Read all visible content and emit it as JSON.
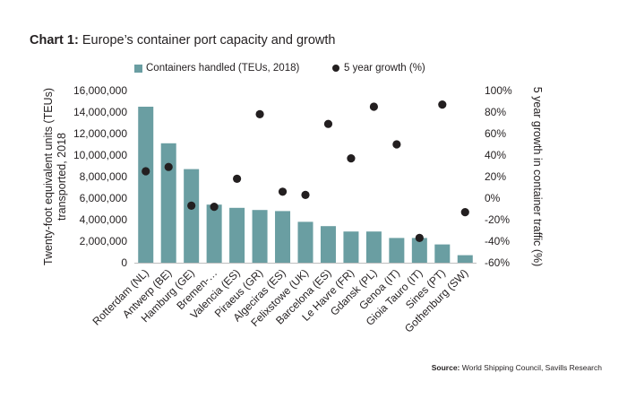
{
  "chart_data": {
    "type": "bar",
    "title_bold": "Chart 1:",
    "title_rest": "Europe’s container port capacity and growth",
    "categories": [
      "Rotterdam (NL)",
      "Antwerp (BE)",
      "Hamburg (GE)",
      "Bremen-…",
      "Valencia (ES)",
      "Piraeus (GR)",
      "Algeciras (ES)",
      "Felixstowe (UK)",
      "Barcelona (ES)",
      "Le Havre (FR)",
      "Gdansk (PL)",
      "Genoa (IT)",
      "Gioia Tauro (IT)",
      "Sines (PT)",
      "Gothenburg (SW)"
    ],
    "series": [
      {
        "name": "Containers handled (TEUs, 2018)",
        "type": "bar",
        "axis": "left",
        "color": "#6a9ea2",
        "values": [
          14500000,
          11100000,
          8700000,
          5400000,
          5100000,
          4900000,
          4800000,
          3800000,
          3400000,
          2900000,
          2900000,
          2300000,
          2300000,
          1700000,
          700000
        ]
      },
      {
        "name": "5 year growth (%)",
        "type": "scatter",
        "axis": "right",
        "color": "#231f20",
        "values": [
          25,
          29,
          -7,
          -8,
          18,
          78,
          6,
          3,
          69,
          37,
          85,
          50,
          -37,
          87,
          -13
        ]
      }
    ],
    "y_left": {
      "label_line1": "Twenty-foot equivalent units (TEUs)",
      "label_line2": "transported, 2018",
      "ylim": [
        0,
        16000000
      ],
      "ticks": [
        "0",
        "2,000,000",
        "4,000,000",
        "6,000,000",
        "8,000,000",
        "10,000,000",
        "12,000,000",
        "14,000,000",
        "16,000,000"
      ]
    },
    "y_right": {
      "label": "5 year growth in container traffic (%)",
      "ylim": [
        -60,
        100
      ],
      "ticks": [
        "-60%",
        "-40%",
        "-20%",
        "0%",
        "20%",
        "40%",
        "60%",
        "80%",
        "100%"
      ]
    },
    "legend_position": "top",
    "grid": false
  },
  "source": {
    "label": "Source:",
    "text": "World Shipping Council, Savills Research"
  }
}
